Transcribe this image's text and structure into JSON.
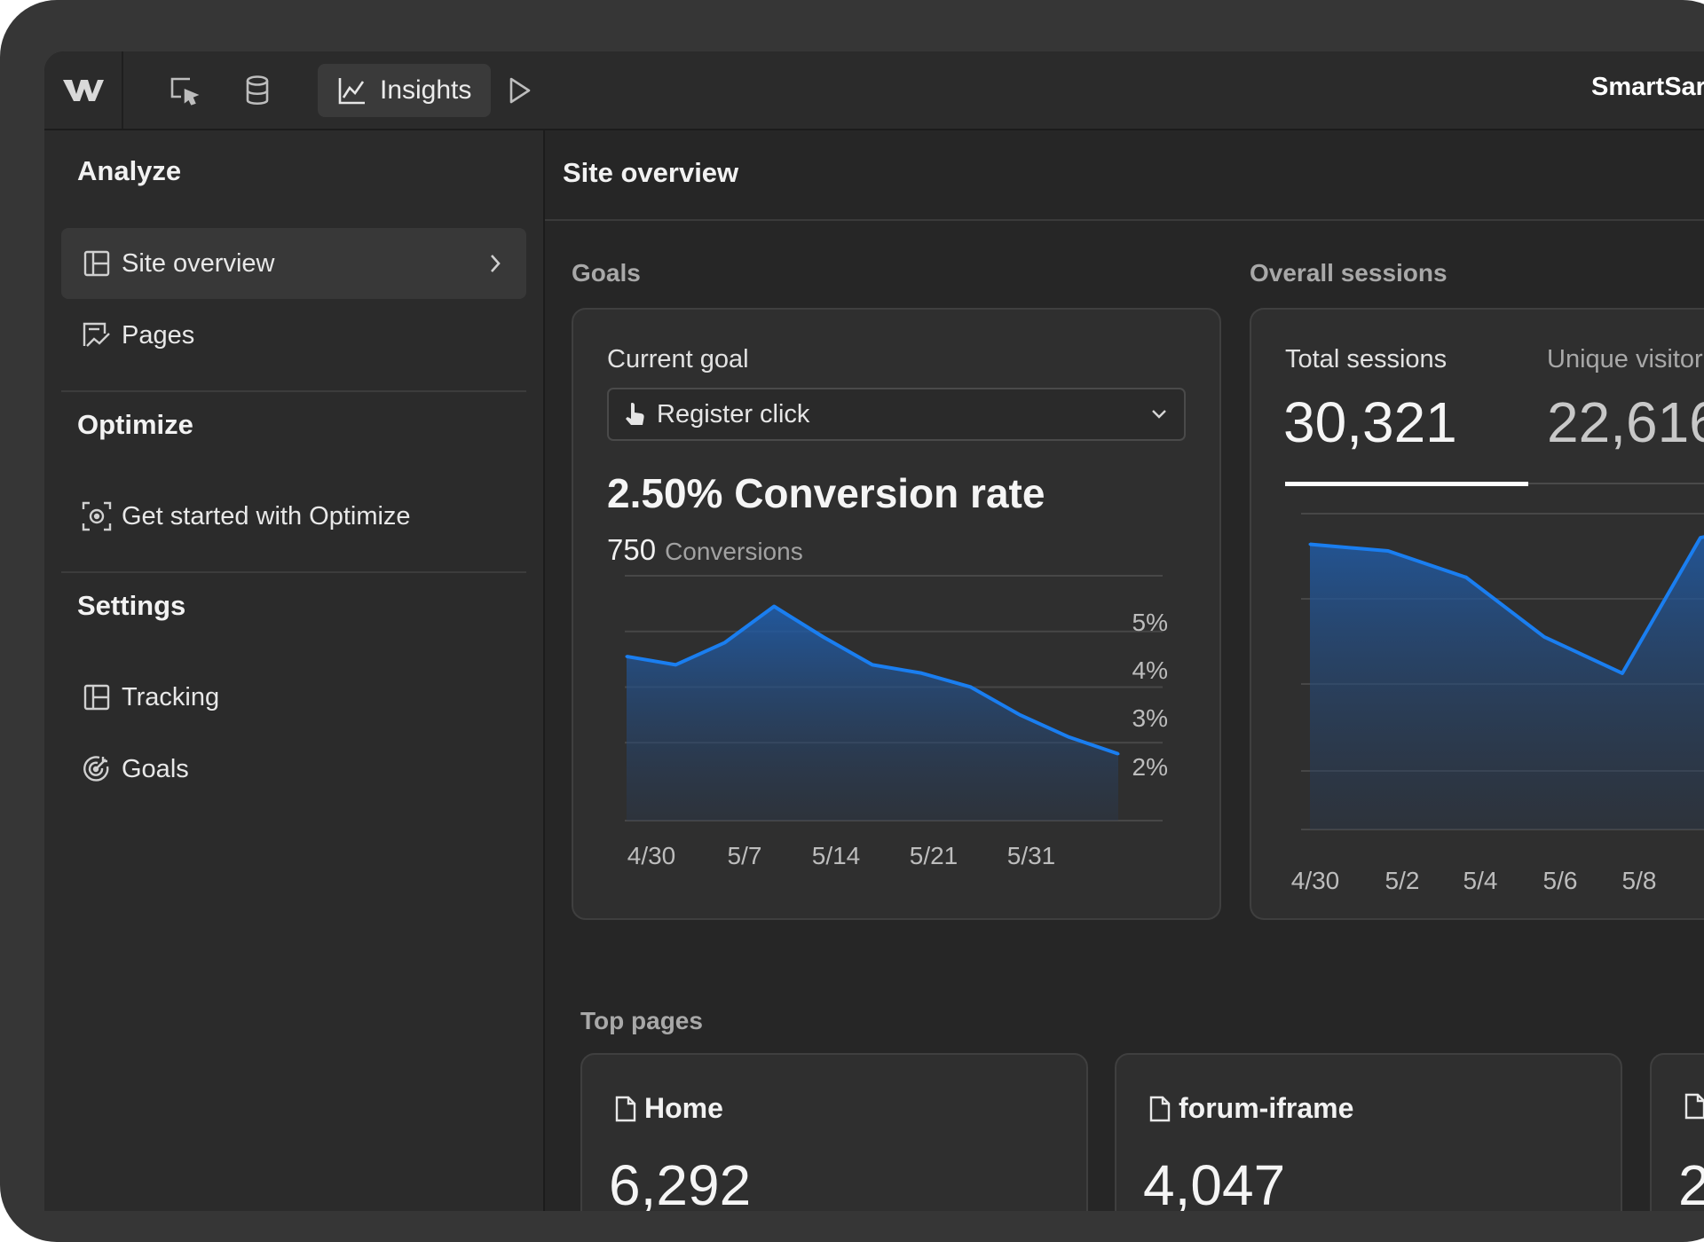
{
  "app": {
    "site_name": "SmartSar"
  },
  "topbar": {
    "tools": [
      {
        "name": "designer-icon"
      },
      {
        "name": "database-icon"
      },
      {
        "name": "insights",
        "label": "Insights",
        "active": true
      },
      {
        "name": "preview-play-icon"
      }
    ]
  },
  "sidebar": {
    "sections": [
      {
        "title": "Analyze",
        "items": [
          {
            "label": "Site overview",
            "icon": "layout-icon",
            "active": true
          },
          {
            "label": "Pages",
            "icon": "pages-chart-icon"
          }
        ]
      },
      {
        "title": "Optimize",
        "items": [
          {
            "label": "Get started with Optimize",
            "icon": "focus-target-icon"
          }
        ]
      },
      {
        "title": "Settings",
        "items": [
          {
            "label": "Tracking",
            "icon": "layout-icon"
          },
          {
            "label": "Goals",
            "icon": "goal-target-icon"
          }
        ]
      }
    ]
  },
  "main": {
    "title": "Site overview",
    "goals": {
      "section_title": "Goals",
      "current_goal_label": "Current goal",
      "selected_goal": "Register click",
      "conversion_rate": "2.50% Conversion rate",
      "conversions_value": "750",
      "conversions_label": "Conversions"
    },
    "sessions": {
      "section_title": "Overall sessions",
      "total_label": "Total sessions",
      "total_value": "30,321",
      "unique_label": "Unique visitor",
      "unique_value": "22,616"
    },
    "top_pages": {
      "section_title": "Top pages",
      "pages": [
        {
          "name": "Home",
          "value": "6,292"
        },
        {
          "name": "forum-iframe",
          "value": "4,047"
        },
        {
          "name": "",
          "value": "2"
        }
      ]
    }
  },
  "colors": {
    "accent": "#1a7ef0",
    "fill": "#1d4f8f",
    "spark": "#4ade80",
    "background": "#262626"
  },
  "chart_data": [
    {
      "type": "area",
      "title": "",
      "x": [
        "4/30",
        "5/2",
        "5/4",
        "5/7",
        "5/10",
        "5/12",
        "5/14",
        "5/21",
        "5/26",
        "5/29",
        "5/31"
      ],
      "values": [
        3.95,
        3.8,
        4.2,
        4.85,
        4.3,
        3.8,
        3.65,
        3.4,
        2.9,
        2.5,
        2.2
      ],
      "y_ticks": [
        "5%",
        "4%",
        "3%",
        "2%"
      ],
      "x_ticks": [
        "4/30",
        "5/7",
        "5/14",
        "5/21",
        "5/31"
      ],
      "ylim": [
        1,
        5.4
      ],
      "grid": true
    },
    {
      "type": "area",
      "title": "",
      "x": [
        "4/30",
        "5/1",
        "5/2",
        "5/3",
        "5/4",
        "5/5",
        "5/6",
        "5/7",
        "5/8",
        "5/9"
      ],
      "values": [
        1500,
        1480,
        1400,
        1220,
        1110,
        1520,
        1570,
        1580,
        1560,
        1530
      ],
      "x_ticks": [
        "4/30",
        "5/2",
        "5/4",
        "5/6",
        "5/8"
      ],
      "grid": true
    }
  ]
}
